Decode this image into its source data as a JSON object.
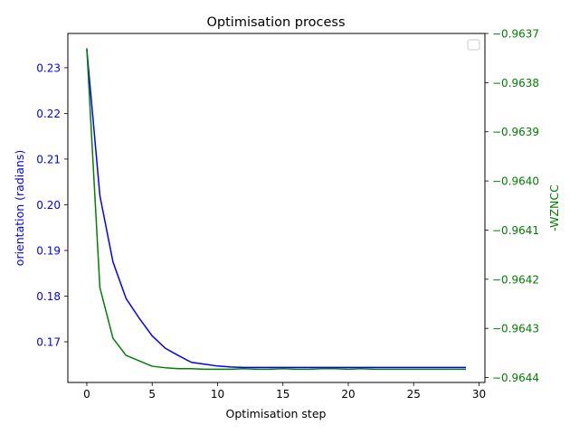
{
  "chart_data": {
    "type": "line",
    "title": "Optimisation process",
    "xlabel": "Optimisation step",
    "ylabel_left": "orientation (radians)",
    "ylabel_right": "-WZNCC",
    "xlim": [
      -1.45,
      30.45
    ],
    "ylim_left": [
      0.1611,
      0.2375
    ],
    "ylim_right": [
      -0.96441,
      -0.9637
    ],
    "x_ticks": [
      0,
      5,
      10,
      15,
      20,
      25,
      30
    ],
    "y_left_ticks": [
      0.17,
      0.18,
      0.19,
      0.2,
      0.21,
      0.22,
      0.23
    ],
    "y_right_ticks": [
      -0.9644,
      -0.9643,
      -0.9642,
      -0.9641,
      -0.964,
      -0.9639,
      -0.9638,
      -0.9637
    ],
    "x_tick_labels": [
      "0",
      "5",
      "10",
      "15",
      "20",
      "25",
      "30"
    ],
    "y_left_tick_labels": [
      "0.17",
      "0.18",
      "0.19",
      "0.20",
      "0.21",
      "0.22",
      "0.23"
    ],
    "y_right_tick_labels": [
      "−0.9644",
      "−0.9643",
      "−0.9642",
      "−0.9641",
      "−0.9640",
      "−0.9639",
      "−0.9638",
      "−0.9637"
    ],
    "colors": {
      "left": "#0000ff",
      "right": "#008000",
      "axis": "#000000"
    },
    "legend": "top-right, empty",
    "grid": false,
    "series": [
      {
        "axis": "left",
        "color": "#0000ff",
        "x": [
          0,
          1,
          2,
          3,
          4,
          5,
          6,
          7,
          8,
          9,
          10,
          11,
          12,
          13,
          14,
          15,
          16,
          17,
          18,
          19,
          20,
          21,
          22,
          23,
          24,
          25,
          26,
          27,
          28,
          29
        ],
        "values": [
          0.234,
          0.202,
          0.1875,
          0.1795,
          0.1752,
          0.1713,
          0.1686,
          0.167,
          0.1655,
          0.1651,
          0.1647,
          0.1645,
          0.1644,
          0.1644,
          0.1644,
          0.1644,
          0.1644,
          0.1644,
          0.1644,
          0.1644,
          0.1644,
          0.1644,
          0.1644,
          0.1644,
          0.1644,
          0.1644,
          0.1644,
          0.1644,
          0.1644,
          0.1644
        ]
      },
      {
        "axis": "right",
        "color": "#008000",
        "x": [
          0,
          1,
          2,
          3,
          4,
          5,
          6,
          7,
          8,
          9,
          10,
          11,
          12,
          13,
          14,
          15,
          16,
          17,
          18,
          19,
          20,
          21,
          22,
          23,
          24,
          25,
          26,
          27,
          28,
          29
        ],
        "values": [
          -0.96373,
          -0.964217,
          -0.96432,
          -0.964355,
          -0.964366,
          -0.964377,
          -0.96438,
          -0.964382,
          -0.964382,
          -0.964383,
          -0.964383,
          -0.964383,
          -0.964382,
          -0.964383,
          -0.964383,
          -0.964382,
          -0.964383,
          -0.964383,
          -0.964382,
          -0.964382,
          -0.964383,
          -0.964382,
          -0.964383,
          -0.964383,
          -0.964383,
          -0.964383,
          -0.964383,
          -0.964383,
          -0.964383,
          -0.964383
        ]
      }
    ]
  }
}
